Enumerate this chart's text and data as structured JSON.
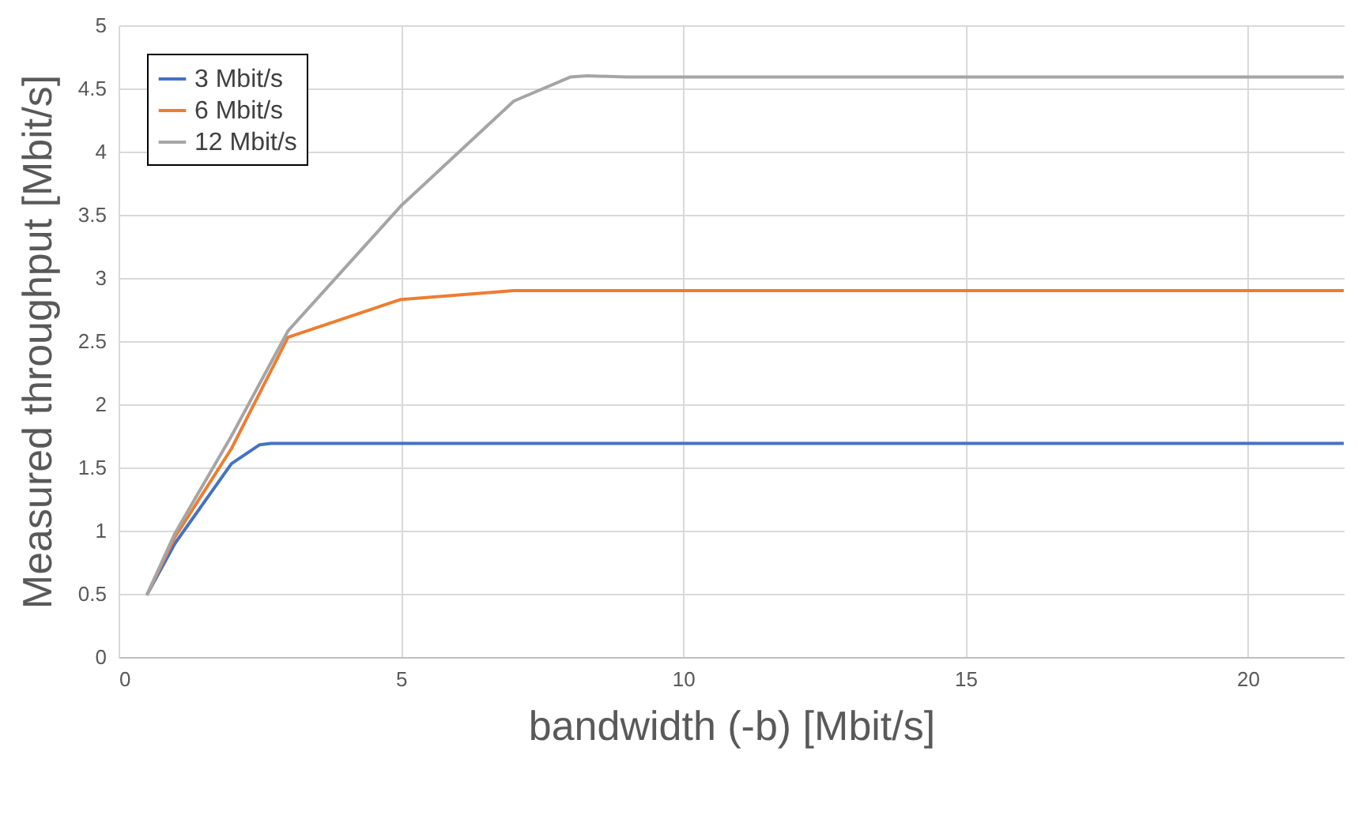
{
  "chart_data": {
    "type": "line",
    "xlabel": "bandwidth (-b) [Mbit/s]",
    "ylabel": "Measured throughput [Mbit/s]",
    "xlim": [
      0,
      21.7
    ],
    "xticks": [
      0,
      5,
      10,
      15,
      20
    ],
    "ylim": [
      0,
      5
    ],
    "yticks": [
      0,
      0.5,
      1,
      1.5,
      2,
      2.5,
      3,
      3.5,
      4,
      4.5,
      5
    ],
    "grid": true,
    "legend": "top left",
    "marker": "none",
    "line_style": "solid",
    "series": [
      {
        "name": "3 Mbit/s",
        "color": "#4472c4",
        "x": [
          0.5,
          1,
          2,
          2.5,
          2.7,
          5,
          10,
          15,
          20,
          21.7
        ],
        "values": [
          0.49,
          0.9,
          1.53,
          1.68,
          1.69,
          1.69,
          1.69,
          1.69,
          1.69,
          1.69
        ]
      },
      {
        "name": "6 Mbit/s",
        "color": "#ed7d31",
        "x": [
          0.5,
          1,
          2,
          3,
          5,
          7,
          10,
          15,
          20,
          21.7
        ],
        "values": [
          0.49,
          0.95,
          1.65,
          2.53,
          2.83,
          2.9,
          2.9,
          2.9,
          2.9,
          2.9
        ]
      },
      {
        "name": "12 Mbit/s",
        "color": "#a5a5a5",
        "x": [
          0.5,
          1,
          2,
          3,
          5,
          7,
          8,
          8.3,
          9,
          10,
          15,
          20,
          21.7
        ],
        "values": [
          0.49,
          0.98,
          1.75,
          2.58,
          3.57,
          4.4,
          4.59,
          4.6,
          4.59,
          4.59,
          4.59,
          4.59,
          4.59
        ]
      }
    ]
  }
}
